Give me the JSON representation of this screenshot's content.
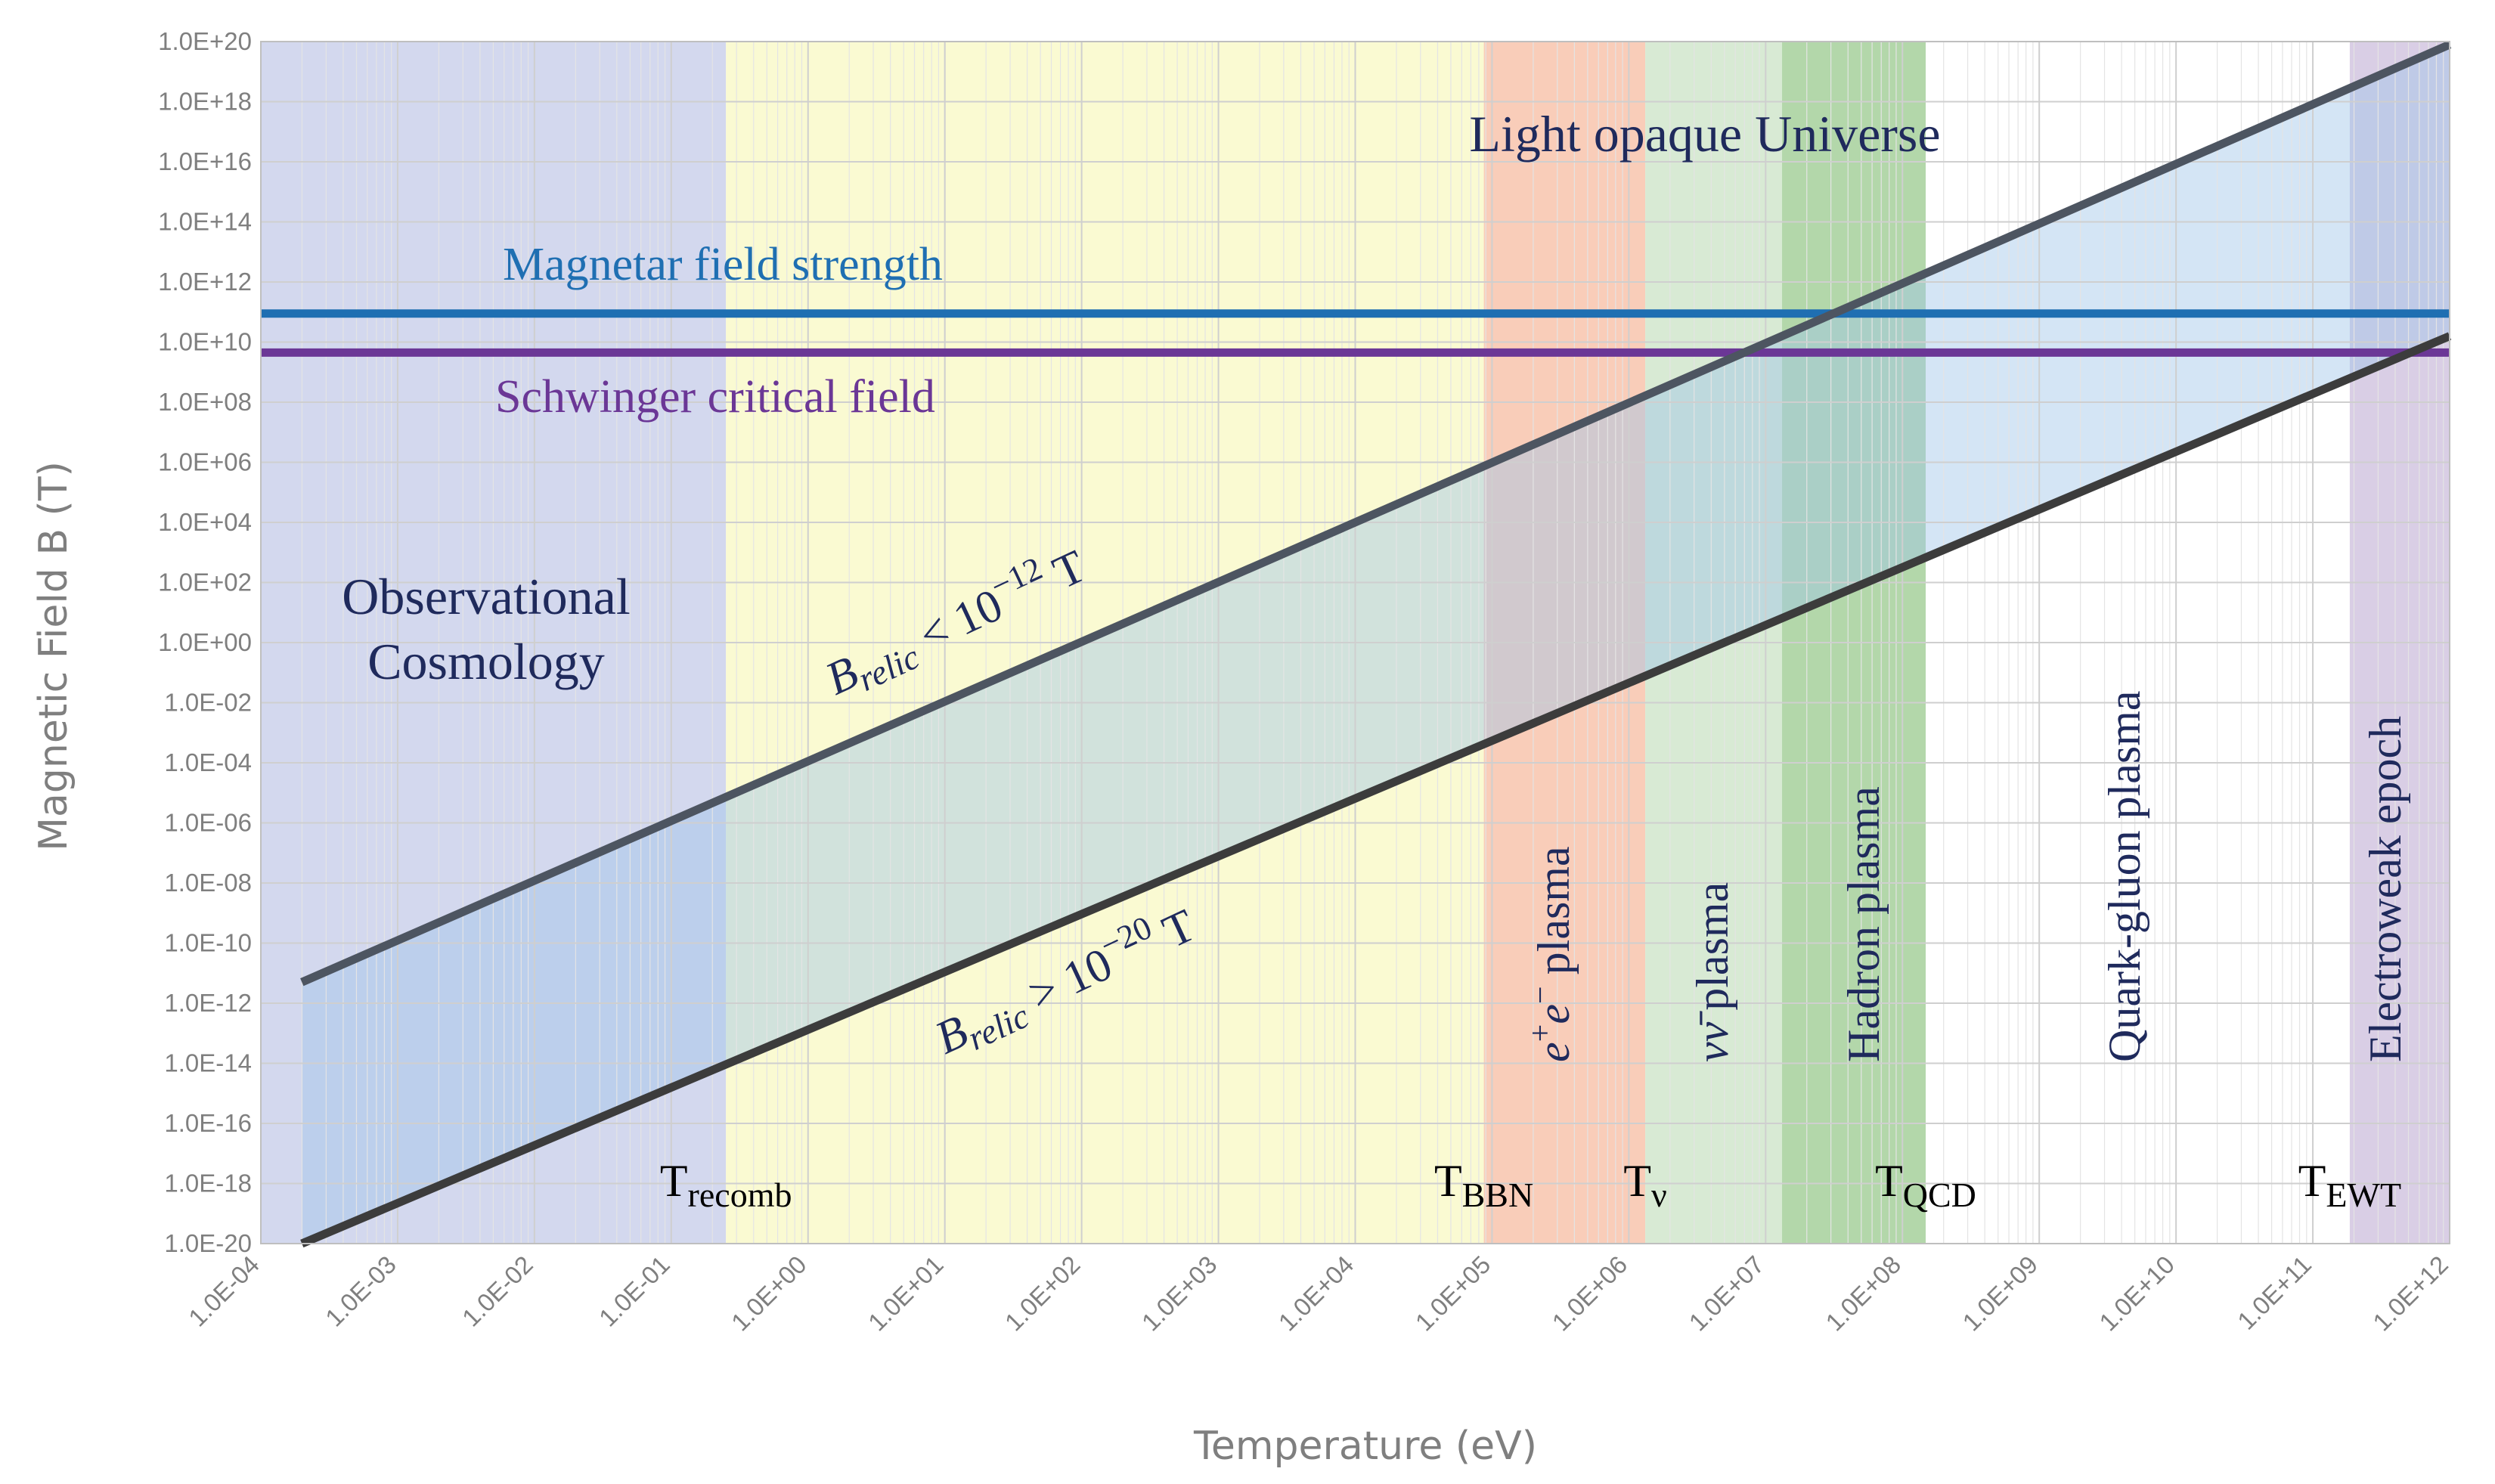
{
  "chart_data": {
    "type": "line",
    "xlabel": "Temperature (eV)",
    "ylabel": "Magnetic Field B (T)",
    "xscale": "log",
    "yscale": "log",
    "xlim_exp": [
      -4,
      12
    ],
    "ylim_exp": [
      -20,
      20
    ],
    "grid": true,
    "x_ticks": [
      {
        "exp": -4,
        "label": "1.0E-04"
      },
      {
        "exp": -3,
        "label": "1.0E-03"
      },
      {
        "exp": -2,
        "label": "1.0E-02"
      },
      {
        "exp": -1,
        "label": "1.0E-01"
      },
      {
        "exp": 0,
        "label": "1.0E+00"
      },
      {
        "exp": 1,
        "label": "1.0E+01"
      },
      {
        "exp": 2,
        "label": "1.0E+02"
      },
      {
        "exp": 3,
        "label": "1.0E+03"
      },
      {
        "exp": 4,
        "label": "1.0E+04"
      },
      {
        "exp": 5,
        "label": "1.0E+05"
      },
      {
        "exp": 6,
        "label": "1.0E+06"
      },
      {
        "exp": 7,
        "label": "1.0E+07"
      },
      {
        "exp": 8,
        "label": "1.0E+08"
      },
      {
        "exp": 9,
        "label": "1.0E+09"
      },
      {
        "exp": 10,
        "label": "1.0E+10"
      },
      {
        "exp": 11,
        "label": "1.0E+11"
      },
      {
        "exp": 12,
        "label": "1.0E+12"
      }
    ],
    "y_ticks": [
      {
        "exp": 20,
        "label": "1.0E+20"
      },
      {
        "exp": 18,
        "label": "1.0E+18"
      },
      {
        "exp": 16,
        "label": "1.0E+16"
      },
      {
        "exp": 14,
        "label": "1.0E+14"
      },
      {
        "exp": 12,
        "label": "1.0E+12"
      },
      {
        "exp": 10,
        "label": "1.0E+10"
      },
      {
        "exp": 8,
        "label": "1.0E+08"
      },
      {
        "exp": 6,
        "label": "1.0E+06"
      },
      {
        "exp": 4,
        "label": "1.0E+04"
      },
      {
        "exp": 2,
        "label": "1.0E+02"
      },
      {
        "exp": 0,
        "label": "1.0E+00"
      },
      {
        "exp": -2,
        "label": "1.0E-02"
      },
      {
        "exp": -4,
        "label": "1.0E-04"
      },
      {
        "exp": -6,
        "label": "1.0E-06"
      },
      {
        "exp": -8,
        "label": "1.0E-08"
      },
      {
        "exp": -10,
        "label": "1.0E-10"
      },
      {
        "exp": -12,
        "label": "1.0E-12"
      },
      {
        "exp": -14,
        "label": "1.0E-14"
      },
      {
        "exp": -16,
        "label": "1.0E-16"
      },
      {
        "exp": -18,
        "label": "1.0E-18"
      },
      {
        "exp": -20,
        "label": "1.0E-20"
      }
    ],
    "regions": [
      {
        "name": "observational-cosmology",
        "x_from_exp": -4,
        "x_to_exp": -0.6,
        "color": "#d3d8ee"
      },
      {
        "name": "recombination-to-bbn",
        "x_from_exp": -0.6,
        "x_to_exp": 4.94,
        "color": "#fafad2"
      },
      {
        "name": "ee-plasma",
        "x_from_exp": 4.94,
        "x_to_exp": 6.12,
        "color": "#f9cdb9"
      },
      {
        "name": "nu-plasma",
        "x_from_exp": 6.12,
        "x_to_exp": 7.12,
        "color": "#d8ead4"
      },
      {
        "name": "hadron-plasma",
        "x_from_exp": 7.12,
        "x_to_exp": 8.17,
        "color": "#b3d7aa"
      },
      {
        "name": "quark-gluon-plasma",
        "x_from_exp": 8.17,
        "x_to_exp": 11.27,
        "color": "#ffffff"
      },
      {
        "name": "electroweak-epoch",
        "x_from_exp": 11.27,
        "x_to_exp": 12,
        "color": "#d9cee5"
      }
    ],
    "band_fill": "#9fc5e8",
    "series": [
      {
        "name": "B_relic upper bound (10^-12 T)",
        "color": "#4d5561",
        "x_exp": [
          -3.7,
          12
        ],
        "y_exp": [
          -11.3,
          19.9
        ]
      },
      {
        "name": "B_relic lower bound (10^-20 T)",
        "color": "#3c3c3c",
        "x_exp": [
          -3.7,
          12
        ],
        "y_exp": [
          -20,
          10.2
        ]
      }
    ],
    "hlines": [
      {
        "name": "Magnetar field strength",
        "y_exp": 10.95,
        "color": "#1f6fb2"
      },
      {
        "name": "Schwinger critical field",
        "y_exp": 9.65,
        "color": "#6b3796"
      }
    ],
    "temperatures": [
      {
        "exp": -0.6,
        "base": "T",
        "sub": "recomb"
      },
      {
        "exp": 4.94,
        "base": "T",
        "sub": "BBN"
      },
      {
        "exp": 6.12,
        "base": "T",
        "sub": "ν"
      },
      {
        "exp": 8.17,
        "base": "T",
        "sub": "QCD"
      },
      {
        "exp": 11.27,
        "base": "T",
        "sub": "EWT"
      }
    ],
    "annotations": {
      "light_opaque": "Light opaque Universe",
      "observational_1": "Observational",
      "observational_2": "Cosmology",
      "magnetar": "Magnetar field strength",
      "schwinger": "Schwinger critical field",
      "relic_upper_sym": "B",
      "relic_upper_sub": "relic",
      "relic_upper_rel": " < 10",
      "relic_upper_exp": "−12",
      "relic_upper_unit": " T",
      "relic_lower_sym": "B",
      "relic_lower_sub": "relic",
      "relic_lower_rel": " > 10",
      "relic_lower_exp": "−20",
      "relic_lower_unit": " T",
      "ee_e1": "e",
      "ee_sup1": "+",
      "ee_e2": "e",
      "ee_sup2": "−",
      "ee_plasma": " plasma",
      "nu_sym": "νν̄",
      "nu_plasma": " plasma",
      "hadron": "Hadron plasma",
      "quark_gluon": "Quark-gluon plasma",
      "electroweak": "Electroweak epoch"
    }
  }
}
